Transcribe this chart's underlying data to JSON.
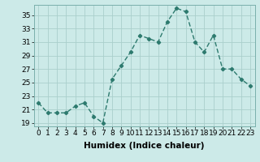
{
  "x": [
    0,
    1,
    2,
    3,
    4,
    5,
    6,
    7,
    8,
    9,
    10,
    11,
    12,
    13,
    14,
    15,
    16,
    17,
    18,
    19,
    20,
    21,
    22,
    23
  ],
  "y": [
    22,
    20.5,
    20.5,
    20.5,
    21.5,
    22,
    20,
    19,
    25.5,
    27.5,
    29.5,
    32,
    31.5,
    31,
    34,
    36,
    35.5,
    31,
    29.5,
    32,
    27,
    27,
    25.5,
    24.5
  ],
  "line_color": "#2d7a6e",
  "marker": "D",
  "marker_size": 2.2,
  "bg_color": "#cceae8",
  "grid_color": "#aacfcc",
  "xlabel": "Humidex (Indice chaleur)",
  "ylim": [
    18.5,
    36.5
  ],
  "xlim": [
    -0.5,
    23.5
  ],
  "yticks": [
    19,
    21,
    23,
    25,
    27,
    29,
    31,
    33,
    35
  ],
  "xticks": [
    0,
    1,
    2,
    3,
    4,
    5,
    6,
    7,
    8,
    9,
    10,
    11,
    12,
    13,
    14,
    15,
    16,
    17,
    18,
    19,
    20,
    21,
    22,
    23
  ],
  "xlabel_fontsize": 7.5,
  "tick_fontsize": 6.5,
  "line_width": 1.0
}
